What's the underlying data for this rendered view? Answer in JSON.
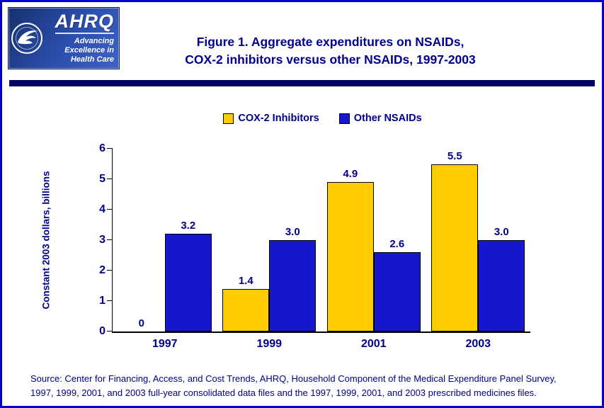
{
  "header": {
    "title_line1": "Figure 1. Aggregate expenditures on NSAIDs,",
    "title_line2": "COX-2 inhibitors versus other NSAIDs, 1997-2003"
  },
  "logo": {
    "acronym": "AHRQ",
    "tagline_line1": "Advancing",
    "tagline_line2": "Excellence in",
    "tagline_line3": "Health Care"
  },
  "footer": {
    "source_line1": "Source: Center for Financing, Access, and Cost Trends, AHRQ, Household Component of the Medical Expenditure Panel Survey,",
    "source_line2": "1997, 1999, 2001, and 2003 full-year consolidated data files and the 1997, 1999, 2001, and 2003 prescribed medicines files."
  },
  "colors": {
    "page_border": "#0202CC",
    "divider_bar": "#00006B",
    "heading_text": "#00008B",
    "cox2_yellow": "#FFCC00",
    "nsaid_blue": "#1616CC"
  },
  "chart_data": {
    "type": "bar",
    "title": "Figure 1. Aggregate expenditures on NSAIDs, COX-2 inhibitors versus other NSAIDs, 1997-2003",
    "categories": [
      "1997",
      "1999",
      "2001",
      "2003"
    ],
    "series": [
      {
        "name": "COX-2 Inhibitors",
        "color": "#FFCC00",
        "values": [
          0,
          1.4,
          4.9,
          5.5
        ],
        "labels": [
          "0",
          "1.4",
          "4.9",
          "5.5"
        ]
      },
      {
        "name": "Other NSAIDs",
        "color": "#1616CC",
        "values": [
          3.2,
          3.0,
          2.6,
          3.0
        ],
        "labels": [
          "3.2",
          "3.0",
          "2.6",
          "3.0"
        ]
      }
    ],
    "xlabel": "",
    "ylabel": "Constant 2003 dollars, billions",
    "ylim": [
      0,
      6
    ],
    "ytick_step": 1,
    "grid": false,
    "legend_position": "top"
  }
}
